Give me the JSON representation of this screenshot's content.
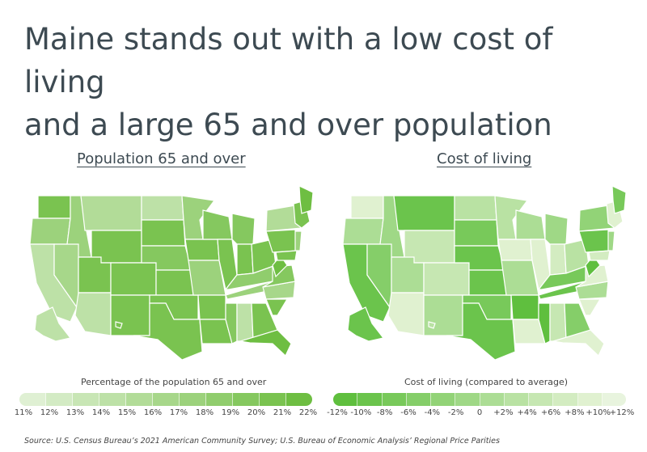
{
  "title": {
    "line1": "Maine stands out with a low cost of living",
    "line2": "and a large 65 and over population"
  },
  "chart_data": [
    {
      "type": "choropleth",
      "title": "Population 65 and over",
      "legend_label": "Percentage of the population 65 and over",
      "tick_labels": [
        "11%",
        "12%",
        "13%",
        "14%",
        "15%",
        "16%",
        "17%",
        "18%",
        "19%",
        "20%",
        "21%",
        "22%"
      ],
      "colors": [
        "#dff0d3",
        "#d3ebc4",
        "#c8e6b5",
        "#bde1a7",
        "#b2dc98",
        "#a7d78a",
        "#9cd27c",
        "#90cd6d",
        "#85c85f",
        "#7ac350",
        "#6ebe42"
      ],
      "emphasized_states": [
        "Maine",
        "Florida",
        "West Virginia"
      ]
    },
    {
      "type": "choropleth",
      "title": "Cost of living",
      "legend_label": "Cost of living (compared to average)",
      "tick_labels": [
        "-12%",
        "-10%",
        "-8%",
        "-6%",
        "-4%",
        "-2%",
        "0",
        "+2%",
        "+4%",
        "+6%",
        "+8%",
        "+10%",
        "+12%"
      ],
      "colors": [
        "#5fbf3e",
        "#6bc44c",
        "#78c95a",
        "#85ce69",
        "#92d377",
        "#9fd886",
        "#acdd95",
        "#b9e2a3",
        "#c6e7b2",
        "#d3ecc1",
        "#e0f1d0",
        "#e8f4de"
      ],
      "emphasized_states": [
        "Mississippi",
        "Arkansas",
        "West Virginia"
      ]
    }
  ],
  "source": "Source:  U.S. Census Bureau’s 2021 American Community Survey; U.S. Bureau of Economic Analysis’ Regional Price Parities"
}
